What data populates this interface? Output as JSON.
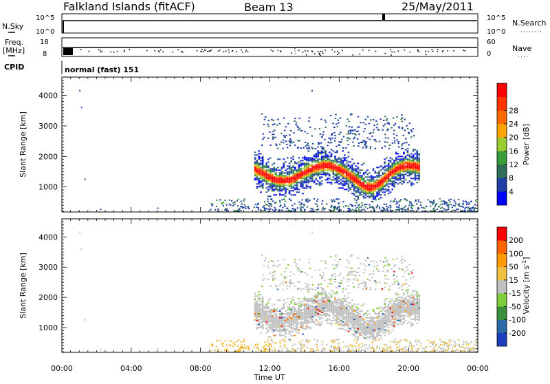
{
  "header": {
    "station": "Falkland Islands (fitACF)",
    "beam": "Beam 13",
    "date": "25/May/2011"
  },
  "strips": {
    "nsky_label": "N.Sky",
    "nsky_ticks": [
      "10^5",
      "10^0"
    ],
    "nsearch_label": "N.Search",
    "nsearch_ticks": [
      "10^5",
      "10^0"
    ],
    "freq_label": "Freq.",
    "freq_unit": "[MHz]",
    "freq_ticks": [
      "18",
      "8"
    ],
    "nave_label": "Nave",
    "nave_ticks": [
      "60",
      "0"
    ],
    "cpid_label": "CPID",
    "cpid_value": "normal (fast) 151"
  },
  "colors": {
    "power_scale": [
      "#0000ff",
      "#1f3ea8",
      "#2f6e57",
      "#3a9c3a",
      "#9acd32",
      "#ffa500",
      "#ff6a00",
      "#ff3300",
      "#ff0000"
    ],
    "velocity_scale": [
      "#1c3fbf",
      "#2a6aa8",
      "#3a8f3a",
      "#7fcf3a",
      "#c0c0c0",
      "#f0c040",
      "#ff9a00",
      "#ff6600",
      "#ff0000"
    ],
    "ground_scatter": "#a0a0a0"
  },
  "chart_data": [
    {
      "type": "heatmap",
      "title": "",
      "xlabel": "Time UT",
      "ylabel": "Slant Range [km]",
      "xlim_hours": [
        0,
        24
      ],
      "ylim_km": [
        180,
        4600
      ],
      "x_tick_labels": [
        "00:00",
        "04:00",
        "08:00",
        "12:00",
        "16:00",
        "20:00",
        "00:00"
      ],
      "y_tick_labels": [
        "1000",
        "2000",
        "3000",
        "4000"
      ],
      "y_ticks": [
        1000,
        2000,
        3000,
        4000
      ],
      "colorbar": {
        "label": "Power [dB]",
        "tick_labels": [
          "4",
          "8",
          "12",
          "16",
          "20",
          "24",
          "28"
        ],
        "ticks": [
          4,
          8,
          12,
          16,
          20,
          24,
          28
        ]
      }
    },
    {
      "type": "heatmap",
      "title": "",
      "xlabel": "Time UT",
      "ylabel": "Slant Range [km]",
      "xlim_hours": [
        0,
        24
      ],
      "ylim_km": [
        180,
        4600
      ],
      "x_tick_labels": [
        "00:00",
        "04:00",
        "08:00",
        "12:00",
        "16:00",
        "20:00",
        "00:00"
      ],
      "y_tick_labels": [
        "1000",
        "2000",
        "3000",
        "4000"
      ],
      "y_ticks": [
        1000,
        2000,
        3000,
        4000
      ],
      "colorbar": {
        "label": "Velocity [m s",
        "label_superscript": "-1",
        "label_close": "]",
        "tick_labels": [
          "200",
          "100",
          "50",
          "15",
          "-15",
          "-50",
          "-100",
          "-200"
        ],
        "ticks": [
          200,
          100,
          50,
          15,
          -15,
          -50,
          -100,
          -200
        ]
      }
    }
  ]
}
